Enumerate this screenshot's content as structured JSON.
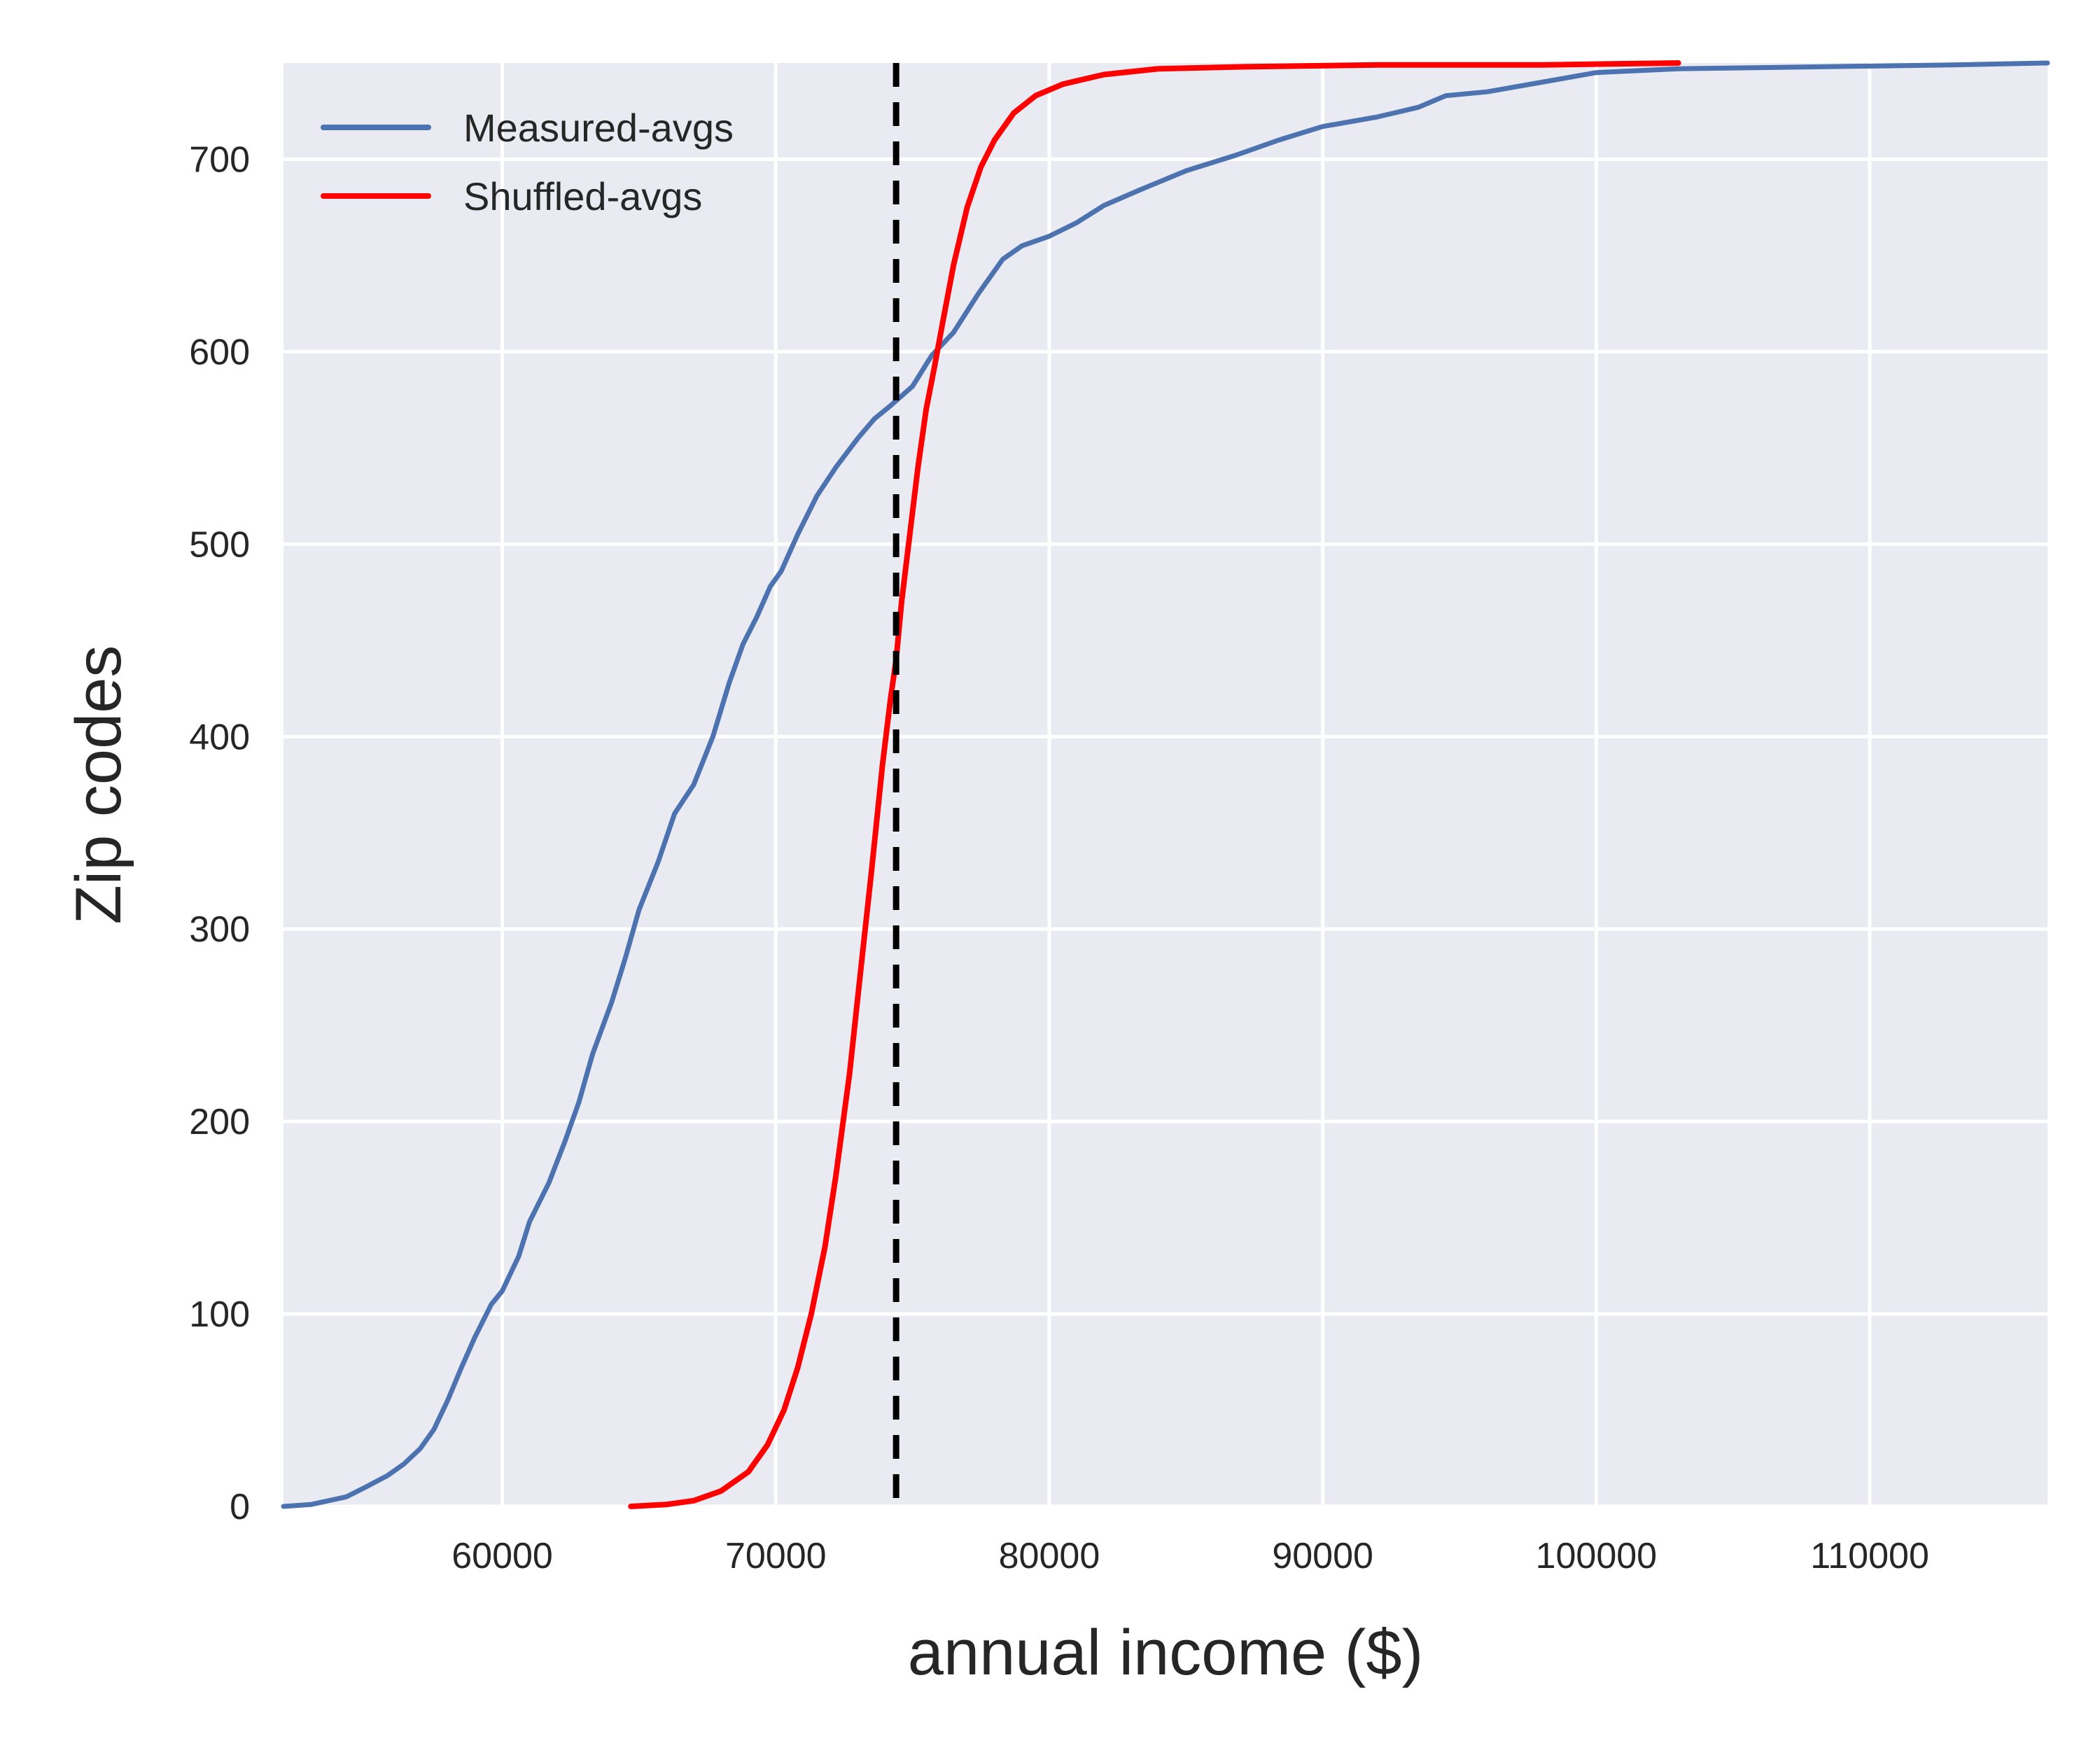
{
  "chart_data": {
    "type": "line",
    "title": "",
    "xlabel": "annual income ($)",
    "ylabel": "Zip codes",
    "xlim": [
      52000,
      116500
    ],
    "ylim": [
      0,
      750
    ],
    "xticks": [
      60000,
      70000,
      80000,
      90000,
      100000,
      110000
    ],
    "xtick_labels": [
      "60000",
      "70000",
      "80000",
      "90000",
      "100000",
      "110000"
    ],
    "yticks": [
      0,
      100,
      200,
      300,
      400,
      500,
      600,
      700
    ],
    "ytick_labels": [
      "0",
      "100",
      "200",
      "300",
      "400",
      "500",
      "600",
      "700"
    ],
    "grid": true,
    "legend_position": "top-left",
    "background_color": "#eaeaf2",
    "reference_line": {
      "x": 74400,
      "style": "dashed",
      "color": "#000000"
    },
    "series": [
      {
        "name": "Measured-avgs",
        "color": "#4c72b0",
        "x": [
          52000,
          53000,
          54300,
          55000,
          55800,
          56400,
          57000,
          57500,
          58000,
          58500,
          59000,
          59600,
          60000,
          60600,
          61000,
          61700,
          62300,
          62800,
          63300,
          64000,
          64500,
          65000,
          65700,
          66300,
          67000,
          67700,
          68300,
          68800,
          69300,
          69800,
          70200,
          70800,
          71500,
          72200,
          73000,
          73600,
          74200,
          75000,
          75700,
          76500,
          77400,
          78300,
          79000,
          80000,
          81000,
          82000,
          83300,
          85000,
          86800,
          88400,
          90000,
          92000,
          93500,
          94500,
          96000,
          98000,
          100000,
          103000,
          108000,
          113000,
          116500
        ],
        "y": [
          0,
          1,
          5,
          10,
          16,
          22,
          30,
          40,
          55,
          72,
          88,
          105,
          112,
          130,
          148,
          168,
          190,
          210,
          235,
          262,
          285,
          310,
          335,
          360,
          375,
          400,
          428,
          448,
          462,
          478,
          486,
          505,
          525,
          540,
          555,
          565,
          572,
          582,
          598,
          610,
          630,
          648,
          655,
          660,
          667,
          676,
          684,
          694,
          702,
          710,
          717,
          722,
          727,
          733,
          735,
          740,
          745,
          747,
          748,
          749,
          750
        ]
      },
      {
        "name": "Shuffled-avgs",
        "color": "#ff0000",
        "x": [
          64700,
          66000,
          67000,
          68000,
          69000,
          69700,
          70300,
          70800,
          71300,
          71800,
          72200,
          72700,
          73100,
          73500,
          73900,
          74200,
          74400,
          74600,
          74900,
          75200,
          75500,
          75800,
          76100,
          76500,
          77000,
          77500,
          78000,
          78700,
          79500,
          80500,
          82000,
          84000,
          87000,
          92000,
          98000,
          103000
        ],
        "y": [
          0,
          1,
          3,
          8,
          18,
          32,
          50,
          72,
          100,
          135,
          172,
          225,
          278,
          330,
          385,
          420,
          440,
          470,
          505,
          540,
          570,
          592,
          615,
          645,
          675,
          696,
          710,
          724,
          733,
          739,
          744,
          747,
          748,
          749,
          749,
          750
        ]
      }
    ]
  }
}
